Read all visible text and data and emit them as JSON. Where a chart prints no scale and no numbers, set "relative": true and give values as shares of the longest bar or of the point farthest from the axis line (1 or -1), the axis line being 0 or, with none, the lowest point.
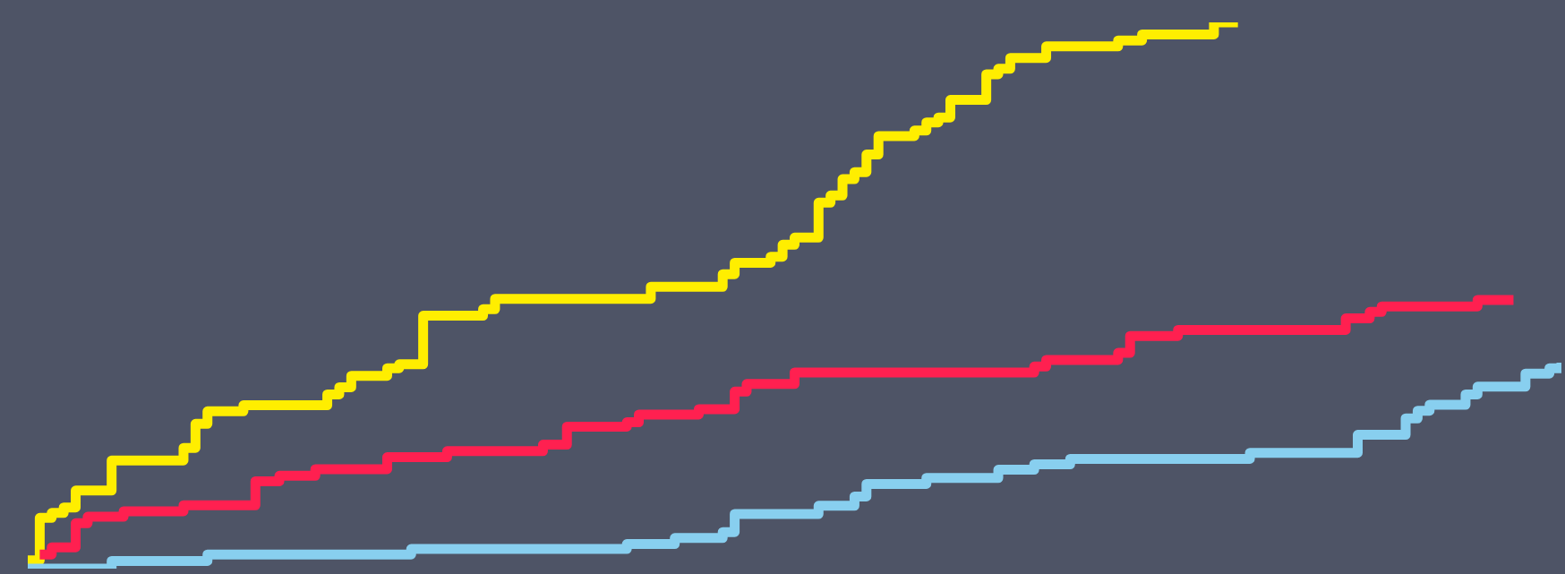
{
  "chart_data": {
    "type": "step",
    "relative": true,
    "categories": [
      null,
      null,
      null,
      null,
      null,
      null,
      null,
      null,
      null,
      null,
      null,
      null,
      null,
      null,
      null,
      null,
      null,
      null,
      null,
      null,
      null,
      null,
      null,
      null,
      null,
      null,
      null,
      null,
      null,
      null,
      null,
      null,
      null,
      null,
      null,
      null,
      null,
      null,
      null,
      null,
      null,
      null,
      null,
      null,
      null,
      null,
      null,
      null,
      null,
      null,
      null,
      null,
      null,
      null,
      null,
      null,
      null,
      null,
      null,
      null,
      null,
      null,
      null,
      null,
      null,
      null,
      null,
      null,
      null,
      null,
      null,
      null,
      null,
      null,
      null,
      null,
      null,
      null,
      null,
      null,
      null,
      null,
      null,
      null,
      null,
      null,
      null,
      null,
      null,
      null,
      null,
      null,
      null,
      null,
      null,
      null,
      null,
      null,
      null,
      null,
      null,
      null,
      null,
      null,
      null,
      null,
      null,
      null,
      null,
      null,
      null,
      null,
      null,
      null,
      null,
      null,
      null,
      null,
      null,
      null,
      null,
      null,
      null,
      null,
      null,
      null,
      null,
      null,
      null
    ],
    "series": [
      {
        "color": "#ffee00",
        "values": [
          0.015,
          0.093,
          0.102,
          0.112,
          0.143,
          0.143,
          0.143,
          0.198,
          0.198,
          0.198,
          0.198,
          0.198,
          0.198,
          0.221,
          0.265,
          0.288,
          0.288,
          0.288,
          0.299,
          0.299,
          0.299,
          0.299,
          0.299,
          0.299,
          0.299,
          0.319,
          0.332,
          0.353,
          0.353,
          0.353,
          0.367,
          0.374,
          0.374,
          0.463,
          0.463,
          0.463,
          0.463,
          0.463,
          0.475,
          0.494,
          0.494,
          0.494,
          0.494,
          0.494,
          0.494,
          0.494,
          0.494,
          0.494,
          0.494,
          0.494,
          0.494,
          0.494,
          0.516,
          0.516,
          0.516,
          0.516,
          0.516,
          0.516,
          0.539,
          0.56,
          0.56,
          0.56,
          0.571,
          0.593,
          0.606,
          0.606,
          0.67,
          0.683,
          0.713,
          0.726,
          0.758,
          0.792,
          0.792,
          0.792,
          0.802,
          0.817,
          0.826,
          0.858,
          0.858,
          0.858,
          0.905,
          0.915,
          0.935,
          0.935,
          0.935,
          0.956,
          0.956,
          0.956,
          0.956,
          0.956,
          0.956,
          0.967,
          0.967,
          0.978,
          0.978,
          0.978,
          0.978,
          0.978,
          0.978,
          1,
          1,
          1,
          null,
          null,
          null,
          null,
          null,
          null,
          null,
          null,
          null,
          null,
          null,
          null,
          null,
          null,
          null,
          null,
          null,
          null,
          null,
          null,
          null,
          null,
          null,
          null,
          null,
          null,
          null
        ]
      },
      {
        "color": "#ff2050",
        "values": [
          null,
          0.026,
          0.039,
          0.039,
          0.083,
          0.095,
          0.095,
          0.095,
          0.105,
          0.105,
          0.105,
          0.105,
          0.105,
          0.116,
          0.116,
          0.116,
          0.116,
          0.116,
          0.116,
          0.16,
          0.16,
          0.17,
          0.17,
          0.17,
          0.182,
          0.182,
          0.182,
          0.182,
          0.182,
          0.182,
          0.204,
          0.204,
          0.204,
          0.204,
          0.204,
          0.215,
          0.215,
          0.215,
          0.215,
          0.215,
          0.215,
          0.215,
          0.215,
          0.227,
          0.227,
          0.26,
          0.26,
          0.26,
          0.26,
          0.26,
          0.268,
          0.282,
          0.282,
          0.282,
          0.282,
          0.282,
          0.292,
          0.292,
          0.292,
          0.324,
          0.338,
          0.338,
          0.338,
          0.338,
          0.359,
          0.359,
          0.359,
          0.359,
          0.359,
          0.359,
          0.359,
          0.359,
          0.359,
          0.359,
          0.359,
          0.359,
          0.359,
          0.359,
          0.359,
          0.359,
          0.359,
          0.359,
          0.359,
          0.359,
          0.37,
          0.382,
          0.382,
          0.382,
          0.382,
          0.382,
          0.382,
          0.395,
          0.426,
          0.426,
          0.426,
          0.426,
          0.437,
          0.437,
          0.437,
          0.437,
          0.437,
          0.437,
          0.437,
          0.437,
          0.437,
          0.437,
          0.437,
          0.437,
          0.437,
          0.437,
          0.458,
          0.458,
          0.47,
          0.48,
          0.48,
          0.48,
          0.48,
          0.48,
          0.48,
          0.48,
          0.48,
          0.492,
          0.492,
          0.492,
          0.492,
          null,
          null,
          null,
          null
        ]
      },
      {
        "color": "#88cfef",
        "values": [
          0,
          0,
          0,
          0,
          0,
          0,
          0,
          0.014,
          0.014,
          0.014,
          0.014,
          0.014,
          0.014,
          0.014,
          0.014,
          0.026,
          0.026,
          0.026,
          0.026,
          0.026,
          0.026,
          0.026,
          0.026,
          0.026,
          0.026,
          0.026,
          0.026,
          0.026,
          0.026,
          0.026,
          0.026,
          0.026,
          0.036,
          0.036,
          0.036,
          0.036,
          0.036,
          0.036,
          0.036,
          0.036,
          0.036,
          0.036,
          0.036,
          0.036,
          0.036,
          0.036,
          0.036,
          0.036,
          0.036,
          0.036,
          0.045,
          0.045,
          0.045,
          0.045,
          0.056,
          0.056,
          0.056,
          0.056,
          0.067,
          0.1,
          0.1,
          0.1,
          0.1,
          0.1,
          0.1,
          0.1,
          0.115,
          0.115,
          0.115,
          0.132,
          0.155,
          0.155,
          0.155,
          0.155,
          0.155,
          0.166,
          0.166,
          0.166,
          0.166,
          0.166,
          0.166,
          0.181,
          0.181,
          0.181,
          0.191,
          0.191,
          0.191,
          0.201,
          0.201,
          0.201,
          0.201,
          0.201,
          0.201,
          0.201,
          0.201,
          0.201,
          0.201,
          0.201,
          0.201,
          0.201,
          0.201,
          0.201,
          0.212,
          0.212,
          0.212,
          0.212,
          0.212,
          0.212,
          0.212,
          0.212,
          0.212,
          0.245,
          0.245,
          0.245,
          0.245,
          0.275,
          0.289,
          0.3,
          0.3,
          0.3,
          0.319,
          0.333,
          0.333,
          0.333,
          0.333,
          0.357,
          0.357,
          0.367,
          0.377
        ]
      }
    ]
  }
}
